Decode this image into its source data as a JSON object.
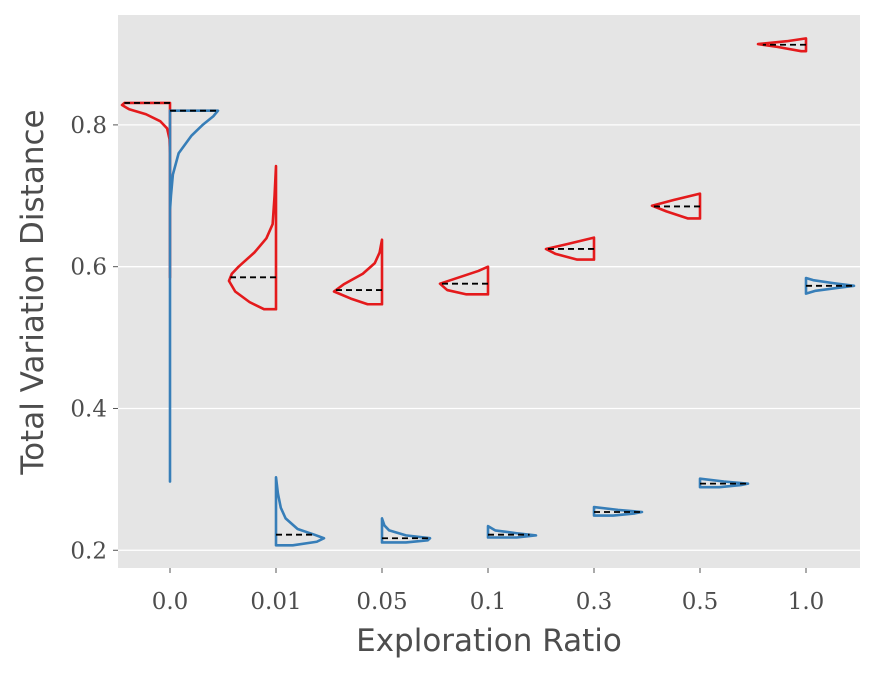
{
  "chart_data": {
    "type": "violin",
    "xlabel": "Exploration Ratio",
    "ylabel": "Total Variation Distance",
    "categories": [
      "0.0",
      "0.01",
      "0.05",
      "0.1",
      "0.3",
      "0.5",
      "1.0"
    ],
    "y_ticks": [
      {
        "value": 0.2,
        "label": "0.2"
      },
      {
        "value": 0.4,
        "label": "0.4"
      },
      {
        "value": 0.6,
        "label": "0.6"
      },
      {
        "value": 0.8,
        "label": "0.8"
      }
    ],
    "ylim": [
      0.175,
      0.955
    ],
    "grid": true,
    "background": "#e5e5e5",
    "gridColor": "#ffffff",
    "medianColor": "#000000",
    "series": [
      {
        "side": "left",
        "color": "#e41a1c",
        "violins": [
          {
            "category": "0.0",
            "min": 0.585,
            "max": 0.831,
            "median": 0.831,
            "profile": [
              [
                0.585,
                0.0
              ],
              [
                0.62,
                0.0
              ],
              [
                0.7,
                0.0
              ],
              [
                0.76,
                0.0
              ],
              [
                0.78,
                0.01
              ],
              [
                0.795,
                0.06
              ],
              [
                0.805,
                0.2
              ],
              [
                0.815,
                0.5
              ],
              [
                0.822,
                0.85
              ],
              [
                0.828,
                1.0
              ],
              [
                0.831,
                0.95
              ]
            ]
          },
          {
            "category": "0.01",
            "min": 0.54,
            "max": 0.742,
            "median": 0.585,
            "profile": [
              [
                0.54,
                0.25
              ],
              [
                0.55,
                0.55
              ],
              [
                0.565,
                0.85
              ],
              [
                0.58,
                0.98
              ],
              [
                0.59,
                0.92
              ],
              [
                0.6,
                0.78
              ],
              [
                0.62,
                0.45
              ],
              [
                0.64,
                0.2
              ],
              [
                0.66,
                0.07
              ],
              [
                0.7,
                0.03
              ],
              [
                0.742,
                0.0
              ]
            ]
          },
          {
            "category": "0.05",
            "min": 0.547,
            "max": 0.638,
            "median": 0.567,
            "profile": [
              [
                0.547,
                0.3
              ],
              [
                0.555,
                0.65
              ],
              [
                0.565,
                1.0
              ],
              [
                0.575,
                0.8
              ],
              [
                0.59,
                0.4
              ],
              [
                0.605,
                0.15
              ],
              [
                0.62,
                0.05
              ],
              [
                0.638,
                0.0
              ]
            ]
          },
          {
            "category": "0.1",
            "min": 0.561,
            "max": 0.6,
            "median": 0.576,
            "profile": [
              [
                0.561,
                0.45
              ],
              [
                0.567,
                0.85
              ],
              [
                0.576,
                1.0
              ],
              [
                0.585,
                0.6
              ],
              [
                0.594,
                0.2
              ],
              [
                0.6,
                0.0
              ]
            ]
          },
          {
            "category": "0.3",
            "min": 0.61,
            "max": 0.641,
            "median": 0.625,
            "profile": [
              [
                0.61,
                0.35
              ],
              [
                0.618,
                0.8
              ],
              [
                0.625,
                1.0
              ],
              [
                0.632,
                0.55
              ],
              [
                0.641,
                0.0
              ]
            ]
          },
          {
            "category": "0.5",
            "min": 0.668,
            "max": 0.703,
            "median": 0.685,
            "profile": [
              [
                0.668,
                0.25
              ],
              [
                0.678,
                0.7
              ],
              [
                0.686,
                1.0
              ],
              [
                0.694,
                0.55
              ],
              [
                0.703,
                0.0
              ]
            ]
          },
          {
            "category": "1.0",
            "min": 0.904,
            "max": 0.922,
            "median": 0.913,
            "profile": [
              [
                0.904,
                0.1
              ],
              [
                0.91,
                0.6
              ],
              [
                0.914,
                1.0
              ],
              [
                0.918,
                0.4
              ],
              [
                0.922,
                0.0
              ]
            ]
          }
        ]
      },
      {
        "side": "right",
        "color": "#377eb8",
        "violins": [
          {
            "category": "0.0",
            "min": 0.297,
            "max": 0.82,
            "median": 0.82,
            "profile": [
              [
                0.297,
                0.0
              ],
              [
                0.5,
                0.0
              ],
              [
                0.68,
                0.0
              ],
              [
                0.7,
                0.02
              ],
              [
                0.73,
                0.06
              ],
              [
                0.76,
                0.18
              ],
              [
                0.785,
                0.45
              ],
              [
                0.8,
                0.68
              ],
              [
                0.812,
                0.9
              ],
              [
                0.82,
                1.0
              ]
            ]
          },
          {
            "category": "0.01",
            "min": 0.207,
            "max": 0.303,
            "median": 0.222,
            "profile": [
              [
                0.207,
                0.35
              ],
              [
                0.212,
                0.85
              ],
              [
                0.217,
                1.0
              ],
              [
                0.222,
                0.8
              ],
              [
                0.23,
                0.45
              ],
              [
                0.245,
                0.2
              ],
              [
                0.26,
                0.1
              ],
              [
                0.28,
                0.04
              ],
              [
                0.303,
                0.0
              ]
            ]
          },
          {
            "category": "0.05",
            "min": 0.211,
            "max": 0.245,
            "median": 0.217,
            "profile": [
              [
                0.211,
                0.5
              ],
              [
                0.214,
                0.95
              ],
              [
                0.217,
                1.0
              ],
              [
                0.221,
                0.5
              ],
              [
                0.228,
                0.15
              ],
              [
                0.235,
                0.05
              ],
              [
                0.245,
                0.0
              ]
            ]
          },
          {
            "category": "0.1",
            "min": 0.218,
            "max": 0.234,
            "median": 0.222,
            "profile": [
              [
                0.218,
                0.6
              ],
              [
                0.221,
                1.0
              ],
              [
                0.224,
                0.6
              ],
              [
                0.228,
                0.15
              ],
              [
                0.234,
                0.0
              ]
            ]
          },
          {
            "category": "0.3",
            "min": 0.249,
            "max": 0.261,
            "median": 0.254,
            "profile": [
              [
                0.249,
                0.4
              ],
              [
                0.252,
                0.85
              ],
              [
                0.254,
                1.0
              ],
              [
                0.257,
                0.5
              ],
              [
                0.261,
                0.0
              ]
            ]
          },
          {
            "category": "0.5",
            "min": 0.289,
            "max": 0.301,
            "median": 0.294,
            "profile": [
              [
                0.289,
                0.4
              ],
              [
                0.292,
                0.85
              ],
              [
                0.294,
                1.0
              ],
              [
                0.297,
                0.5
              ],
              [
                0.301,
                0.0
              ]
            ]
          },
          {
            "category": "1.0",
            "min": 0.562,
            "max": 0.584,
            "median": 0.573,
            "profile": [
              [
                0.562,
                0.0
              ],
              [
                0.566,
                0.2
              ],
              [
                0.57,
                0.65
              ],
              [
                0.573,
                1.0
              ],
              [
                0.577,
                0.55
              ],
              [
                0.581,
                0.15
              ],
              [
                0.584,
                0.0
              ]
            ]
          }
        ]
      }
    ]
  }
}
